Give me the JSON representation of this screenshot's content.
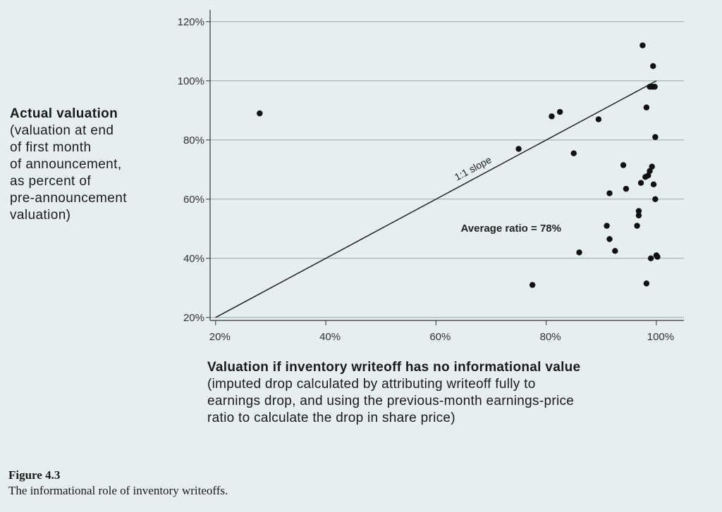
{
  "chart_data": {
    "type": "scatter",
    "ylabel_title": "Actual valuation",
    "ylabel_sub": "(valuation at end\nof first month\nof announcement,\nas percent of\npre-announcement\nvaluation)",
    "xlabel_title": "Valuation if inventory writeoff has no informational value",
    "xlabel_sub": "(imputed drop calculated by attributing writeoff fully to\nearnings drop, and using the previous-month earnings-price\nratio to calculate the drop in share price)",
    "x_ticks": [
      "20%",
      "40%",
      "60%",
      "80%",
      "100%"
    ],
    "y_ticks": [
      "20%",
      "40%",
      "60%",
      "80%",
      "100%",
      "120%"
    ],
    "xlim": [
      19,
      105
    ],
    "ylim": [
      19,
      124
    ],
    "grid": true,
    "reference_line": {
      "label": "1:1 slope",
      "from": [
        20,
        20
      ],
      "to": [
        100,
        100
      ]
    },
    "annotation": "Average ratio = 78%",
    "points": [
      [
        28,
        89
      ],
      [
        75,
        77
      ],
      [
        77.5,
        31
      ],
      [
        81,
        88
      ],
      [
        82.5,
        89.5
      ],
      [
        85,
        75.5
      ],
      [
        86,
        42
      ],
      [
        89.5,
        87
      ],
      [
        91,
        51
      ],
      [
        91.5,
        46.5
      ],
      [
        91.5,
        62
      ],
      [
        92.5,
        42.5
      ],
      [
        94,
        71.5
      ],
      [
        94.5,
        63.5
      ],
      [
        96.5,
        51
      ],
      [
        96.8,
        56
      ],
      [
        96.8,
        54.5
      ],
      [
        97.2,
        65.5
      ],
      [
        97.5,
        112
      ],
      [
        98,
        67.5
      ],
      [
        98.2,
        91
      ],
      [
        98.5,
        68
      ],
      [
        98.8,
        69.5
      ],
      [
        98.8,
        98
      ],
      [
        99,
        40
      ],
      [
        99.2,
        71
      ],
      [
        99.3,
        98
      ],
      [
        99.4,
        105
      ],
      [
        99.5,
        65
      ],
      [
        99.7,
        98
      ],
      [
        99.8,
        60
      ],
      [
        99.8,
        81
      ],
      [
        100,
        41
      ],
      [
        100.2,
        40.5
      ],
      [
        98.2,
        31.5
      ]
    ]
  },
  "caption": {
    "figure": "Figure 4.3",
    "text": "The informational role of inventory writeoffs."
  }
}
